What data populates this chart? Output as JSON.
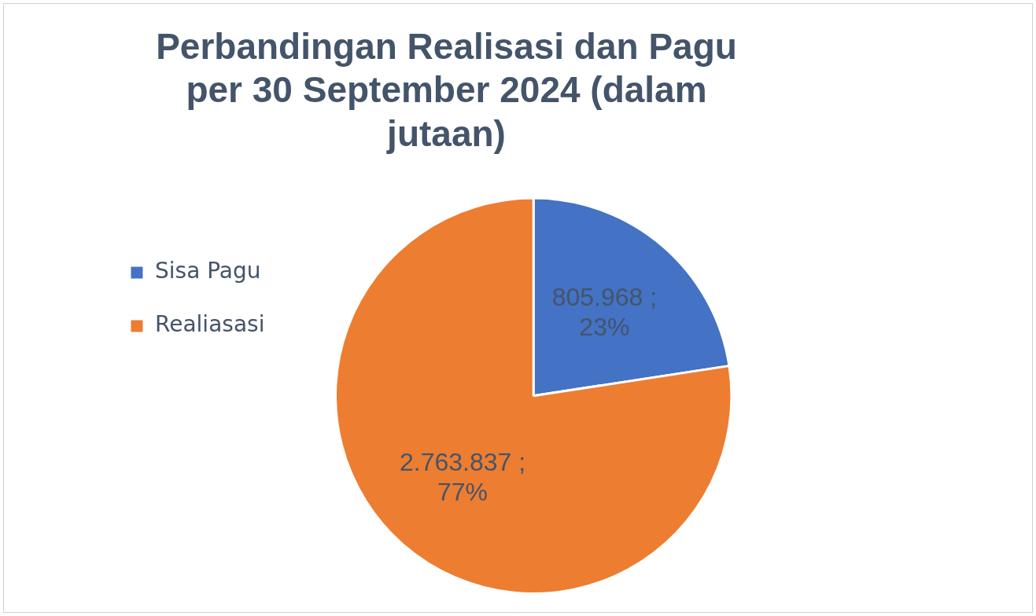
{
  "chart_data": {
    "type": "pie",
    "title": "Perbandingan Realisasi dan Pagu per 30 September 2024 (dalam jutaan)",
    "categories": [
      "Sisa Pagu",
      "Realiasasi"
    ],
    "values": [
      805968,
      2763837
    ],
    "colors": [
      "#4472c4",
      "#ed7d31"
    ],
    "value_labels": [
      "805.968 ; 23%",
      "2.763.837 ; 77%"
    ],
    "legend": "left"
  }
}
